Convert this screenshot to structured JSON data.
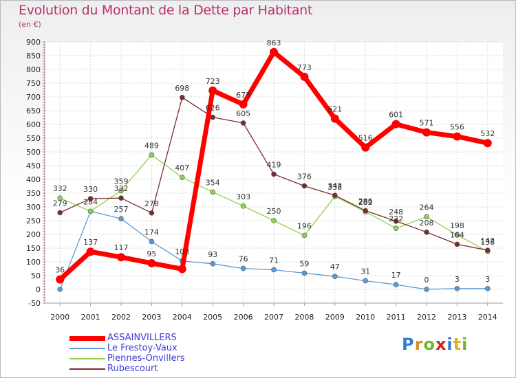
{
  "title": "Evolution du Montant de la Dette par Habitant",
  "unit": "(en €)",
  "logo": "Proxiti",
  "chart_data": {
    "type": "line",
    "title": "Evolution du Montant de la Dette par Habitant",
    "subtitle": "(en €)",
    "xlabel": "",
    "ylabel": "",
    "x": [
      "2000",
      "2001",
      "2002",
      "2003",
      "2004",
      "2005",
      "2006",
      "2007",
      "2008",
      "2009",
      "2010",
      "2011",
      "2012",
      "2013",
      "2014"
    ],
    "ylim": [
      -50,
      900
    ],
    "yticks": [
      -50,
      0,
      50,
      100,
      150,
      200,
      250,
      300,
      350,
      400,
      450,
      500,
      550,
      600,
      650,
      700,
      750,
      800,
      850,
      900
    ],
    "grid": true,
    "legend": "bottom-left",
    "series": [
      {
        "name": "ASSAINVILLERS",
        "color": "#ff0000",
        "values": [
          36,
          137,
          117,
          95,
          74,
          723,
          673,
          863,
          773,
          621,
          516,
          601,
          571,
          556,
          532
        ],
        "labels": [
          "36",
          "137",
          "117",
          "95",
          "",
          "723",
          "673",
          "863",
          "773",
          "621",
          "516",
          "601",
          "571",
          "556",
          "532"
        ]
      },
      {
        "name": "Le Frestoy-Vaux",
        "color": "#5b9bd5",
        "values": [
          0,
          284,
          257,
          174,
          103,
          93,
          76,
          71,
          59,
          47,
          31,
          17,
          0,
          3,
          3
        ],
        "labels": [
          "",
          "284",
          "257",
          "174",
          "103",
          "93",
          "76",
          "71",
          "59",
          "47",
          "31",
          "17",
          "0",
          "3",
          "3"
        ]
      },
      {
        "name": "Piennes-Onvillers",
        "color": "#8fd14f",
        "values": [
          332,
          284,
          359,
          489,
          407,
          354,
          303,
          250,
          196,
          338,
          282,
          222,
          264,
          198,
          138
        ],
        "labels": [
          "332",
          "",
          "359",
          "489",
          "407",
          "354",
          "303",
          "250",
          "196",
          "338",
          "282",
          "222",
          "264",
          "198",
          "138"
        ]
      },
      {
        "name": "Rubescourt",
        "color": "#7b2b2b",
        "values": [
          279,
          330,
          332,
          278,
          698,
          626,
          605,
          419,
          376,
          342,
          286,
          248,
          208,
          164,
          142
        ],
        "labels": [
          "279",
          "330",
          "332",
          "278",
          "698",
          "626",
          "605",
          "419",
          "376",
          "342",
          "286",
          "248",
          "208",
          "164",
          "142"
        ]
      }
    ]
  }
}
